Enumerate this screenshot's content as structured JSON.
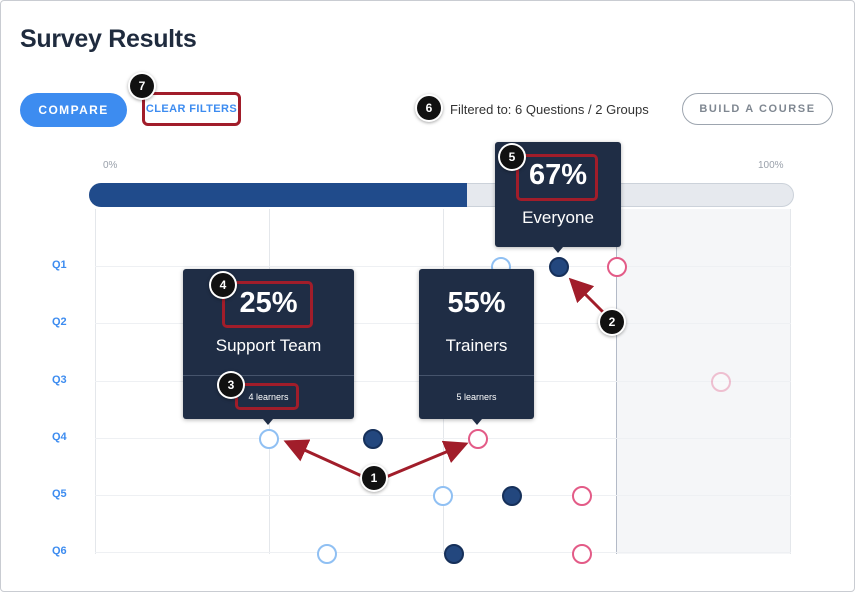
{
  "page": {
    "title": "Survey Results"
  },
  "toolbar": {
    "compare_label": "COMPARE",
    "clear_filters_label": "CLEAR FILTERS",
    "filter_status": "Filtered to: 6 Questions / 2 Groups",
    "build_course_label": "BUILD A COURSE"
  },
  "scale": {
    "min_label": "0%",
    "max_label": "100%",
    "current_percent": 67
  },
  "questions": [
    "Q1",
    "Q2",
    "Q3",
    "Q4",
    "Q5",
    "Q6"
  ],
  "colors": {
    "accent": "#3d8cf0",
    "navy": "#23477e",
    "pink": "#e35b87",
    "light_blue": "#90c0f3",
    "annotation": "#a11d2a"
  },
  "tooltips": {
    "support": {
      "percent": "25%",
      "group": "Support Team",
      "learners": "4 learners"
    },
    "trainers": {
      "percent": "55%",
      "group": "Trainers",
      "learners": "5 learners"
    },
    "everyone": {
      "percent": "67%",
      "group": "Everyone"
    }
  },
  "callouts": {
    "c1": "1",
    "c2": "2",
    "c3": "3",
    "c4": "4",
    "c5": "5",
    "c6": "6",
    "c7": "7"
  }
}
